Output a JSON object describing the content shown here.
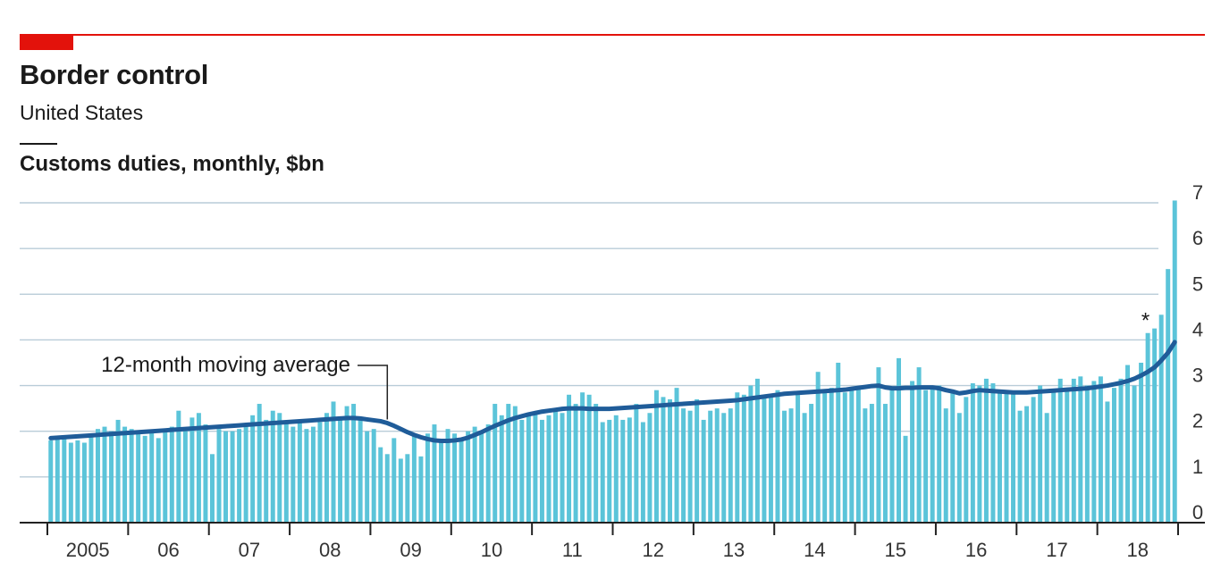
{
  "header": {
    "title": "Border control",
    "subtitle": "United States",
    "measure": "Customs duties, monthly, $bn"
  },
  "colors": {
    "bars": "#5bc4d9",
    "line": "#1f5c99",
    "grid": "#b9ccd8",
    "accent": "#e3120b",
    "rule": "#e3120b",
    "axis": "#222222"
  },
  "chart_data": {
    "type": "bar",
    "x_start": "2005-01",
    "x_end": "2018-09",
    "x_tick_labels": [
      "2005",
      "06",
      "07",
      "08",
      "09",
      "10",
      "11",
      "12",
      "13",
      "14",
      "15",
      "16",
      "17",
      "18"
    ],
    "y_tick_labels": [
      "0",
      "1",
      "2",
      "3",
      "4",
      "5",
      "6",
      "7"
    ],
    "ylim": [
      0,
      7
    ],
    "grid": true,
    "y_axis_side": "right",
    "series": [
      {
        "type": "bar",
        "frequency": "monthly",
        "values": [
          1.8,
          1.85,
          1.9,
          1.75,
          1.8,
          1.75,
          1.9,
          2.05,
          2.1,
          2.0,
          2.25,
          2.1,
          2.05,
          2.0,
          1.9,
          2.0,
          1.85,
          2.0,
          2.1,
          2.45,
          2.05,
          2.3,
          2.4,
          2.15,
          1.5,
          2.05,
          2.0,
          2.0,
          2.05,
          2.1,
          2.35,
          2.6,
          2.25,
          2.45,
          2.4,
          2.2,
          2.1,
          2.25,
          2.05,
          2.1,
          2.2,
          2.4,
          2.65,
          2.3,
          2.55,
          2.6,
          2.25,
          2.0,
          2.05,
          1.65,
          1.5,
          1.85,
          1.4,
          1.5,
          1.9,
          1.45,
          1.95,
          2.15,
          1.8,
          2.05,
          1.95,
          1.8,
          2.0,
          2.1,
          2.0,
          2.15,
          2.6,
          2.35,
          2.6,
          2.55,
          2.25,
          2.35,
          2.4,
          2.25,
          2.35,
          2.45,
          2.4,
          2.8,
          2.6,
          2.85,
          2.8,
          2.6,
          2.2,
          2.25,
          2.35,
          2.25,
          2.3,
          2.6,
          2.2,
          2.4,
          2.9,
          2.75,
          2.7,
          2.95,
          2.5,
          2.45,
          2.7,
          2.25,
          2.45,
          2.5,
          2.4,
          2.5,
          2.85,
          2.8,
          3.0,
          3.15,
          2.8,
          2.8,
          2.9,
          2.45,
          2.5,
          2.85,
          2.4,
          2.6,
          3.3,
          2.85,
          2.95,
          3.5,
          2.85,
          2.9,
          2.95,
          2.5,
          2.6,
          3.4,
          2.6,
          2.9,
          3.6,
          1.9,
          3.1,
          3.4,
          2.9,
          2.95,
          3.0,
          2.5,
          2.9,
          2.4,
          2.75,
          3.05,
          3.0,
          3.15,
          3.05,
          2.85,
          2.9,
          2.85,
          2.45,
          2.55,
          2.75,
          3.0,
          2.4,
          2.9,
          3.15,
          2.9,
          3.15,
          3.2,
          3.0,
          3.1,
          3.2,
          2.65,
          2.95,
          3.15,
          3.45,
          3.0,
          3.5,
          4.15,
          4.25,
          4.55,
          5.55,
          7.05
        ]
      },
      {
        "type": "line",
        "name": "12-month moving average",
        "frequency": "monthly",
        "values": [
          1.85,
          1.86,
          1.87,
          1.88,
          1.89,
          1.9,
          1.91,
          1.92,
          1.93,
          1.94,
          1.95,
          1.96,
          1.97,
          1.98,
          1.99,
          2.0,
          2.01,
          2.02,
          2.03,
          2.04,
          2.05,
          2.06,
          2.07,
          2.08,
          2.09,
          2.1,
          2.11,
          2.12,
          2.13,
          2.14,
          2.15,
          2.16,
          2.17,
          2.18,
          2.19,
          2.2,
          2.21,
          2.22,
          2.23,
          2.24,
          2.25,
          2.26,
          2.27,
          2.28,
          2.29,
          2.29,
          2.28,
          2.26,
          2.24,
          2.22,
          2.18,
          2.12,
          2.05,
          1.98,
          1.92,
          1.87,
          1.83,
          1.8,
          1.79,
          1.79,
          1.8,
          1.82,
          1.86,
          1.92,
          1.98,
          2.05,
          2.12,
          2.18,
          2.24,
          2.29,
          2.33,
          2.37,
          2.4,
          2.43,
          2.45,
          2.47,
          2.49,
          2.5,
          2.5,
          2.5,
          2.49,
          2.49,
          2.49,
          2.49,
          2.5,
          2.51,
          2.52,
          2.53,
          2.54,
          2.55,
          2.56,
          2.57,
          2.58,
          2.59,
          2.6,
          2.61,
          2.62,
          2.63,
          2.64,
          2.65,
          2.66,
          2.67,
          2.68,
          2.7,
          2.72,
          2.74,
          2.76,
          2.78,
          2.8,
          2.82,
          2.83,
          2.84,
          2.85,
          2.86,
          2.87,
          2.88,
          2.89,
          2.9,
          2.91,
          2.93,
          2.95,
          2.97,
          2.99,
          3.0,
          2.96,
          2.94,
          2.94,
          2.95,
          2.95,
          2.96,
          2.96,
          2.96,
          2.94,
          2.9,
          2.87,
          2.83,
          2.85,
          2.88,
          2.9,
          2.89,
          2.88,
          2.87,
          2.86,
          2.85,
          2.85,
          2.85,
          2.86,
          2.87,
          2.88,
          2.89,
          2.9,
          2.91,
          2.92,
          2.93,
          2.94,
          2.96,
          2.98,
          3.0,
          3.03,
          3.06,
          3.1,
          3.15,
          3.22,
          3.3,
          3.4,
          3.55,
          3.72,
          3.95
        ]
      }
    ],
    "annotations": [
      {
        "text": "12-month moving average",
        "points_to": "2009-03"
      },
      {
        "text": "*",
        "points_to": "2018-09"
      }
    ]
  }
}
